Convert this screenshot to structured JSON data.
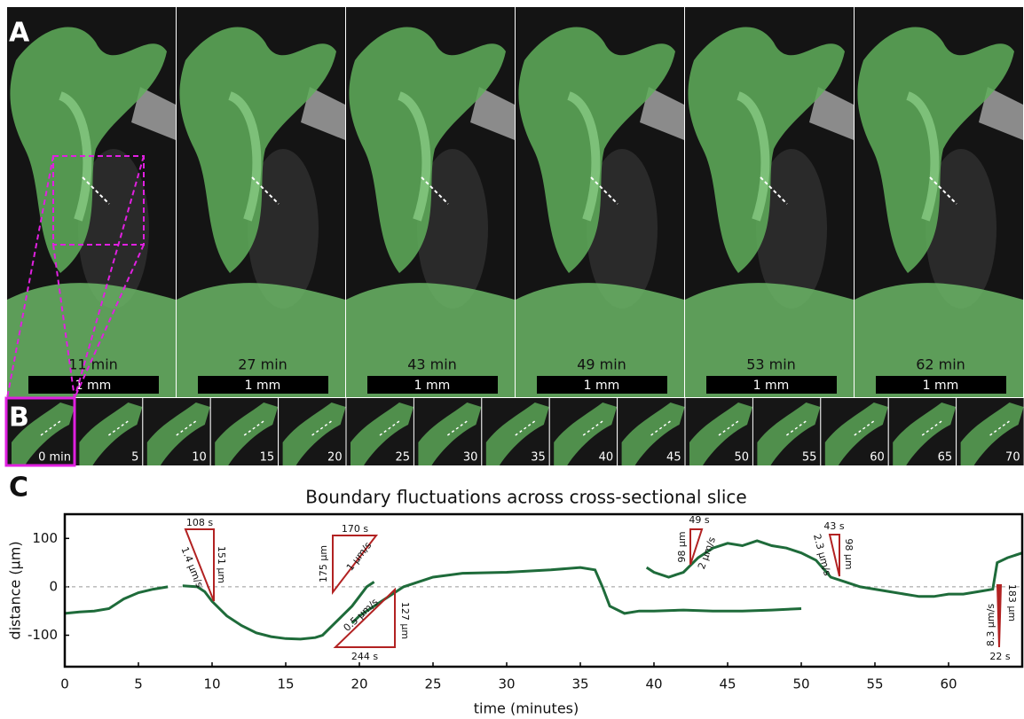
{
  "panels": {
    "A": {
      "label": "A",
      "frames": [
        {
          "time": "11 min",
          "scale": "1 mm"
        },
        {
          "time": "27 min",
          "scale": "1 mm"
        },
        {
          "time": "43 min",
          "scale": "1 mm"
        },
        {
          "time": "49 min",
          "scale": "1 mm"
        },
        {
          "time": "53 min",
          "scale": "1 mm"
        },
        {
          "time": "62 min",
          "scale": "1 mm"
        }
      ]
    },
    "B": {
      "label": "B",
      "frames": [
        "0 min",
        "5",
        "10",
        "15",
        "20",
        "25",
        "30",
        "35",
        "40",
        "45",
        "50",
        "55",
        "60",
        "65",
        "70"
      ]
    },
    "C": {
      "label": "C"
    }
  },
  "chart_data": {
    "type": "line",
    "title": "Boundary fluctuations across cross-sectional slice",
    "x_label": "time (minutes)",
    "y_label": "distance (µm)",
    "xlim": [
      0,
      65
    ],
    "xticks": [
      0,
      5,
      10,
      15,
      20,
      25,
      30,
      35,
      40,
      45,
      50,
      55,
      60
    ],
    "ylim": [
      -165,
      150
    ],
    "yticks": [
      -100,
      0,
      100
    ],
    "reference_line": 0,
    "series": [
      {
        "color": "#1e6b3a",
        "x": [
          0,
          1,
          2,
          3,
          4,
          5,
          6,
          7
        ],
        "values": [
          -55,
          -52,
          -50,
          -45,
          -25,
          -12,
          -5,
          0
        ]
      },
      {
        "color": "#1e6b3a",
        "x": [
          8,
          9,
          9.5,
          10,
          11,
          12,
          13,
          14,
          15,
          16,
          17,
          17.5,
          18,
          19,
          19.5,
          20,
          20.5,
          21
        ],
        "values": [
          2,
          0,
          -10,
          -30,
          -60,
          -80,
          -95,
          -103,
          -107,
          -108,
          -105,
          -100,
          -85,
          -55,
          -40,
          -20,
          0,
          10
        ]
      },
      {
        "color": "#1e6b3a",
        "x": [
          19.5,
          20,
          21,
          22,
          23,
          25,
          27,
          30,
          33,
          35,
          36,
          36.5,
          37,
          38,
          39,
          40,
          42,
          44,
          46,
          48,
          50
        ],
        "values": [
          -75,
          -60,
          -40,
          -20,
          0,
          20,
          28,
          30,
          35,
          40,
          35,
          0,
          -40,
          -55,
          -50,
          -50,
          -48,
          -50,
          -50,
          -48,
          -45
        ]
      },
      {
        "color": "#1e6b3a",
        "x": [
          39.5,
          40,
          41,
          42,
          43,
          44,
          45,
          46,
          47,
          48,
          49,
          50,
          51,
          52,
          53,
          54,
          55,
          56,
          57,
          58,
          59,
          60,
          61,
          62,
          63,
          63.3,
          64,
          65
        ],
        "values": [
          40,
          30,
          20,
          30,
          60,
          80,
          90,
          85,
          95,
          85,
          80,
          70,
          55,
          20,
          10,
          0,
          -5,
          -10,
          -15,
          -20,
          -20,
          -15,
          -15,
          -10,
          -5,
          50,
          60,
          70
        ]
      }
    ],
    "annotations": [
      [
        "108 s",
        "151 µm",
        "1.4 µm/s"
      ],
      [
        "170 s",
        "175 µm",
        "1 µm/s"
      ],
      [
        "244 s",
        "127 µm",
        "0.5 µm/s"
      ],
      [
        "49 s",
        "98 µm",
        "2 µm/s"
      ],
      [
        "43 s",
        "98 µm",
        "2.3 µm/s"
      ],
      [
        "22 s",
        "183 µm",
        "8.3 µm/s"
      ]
    ]
  }
}
